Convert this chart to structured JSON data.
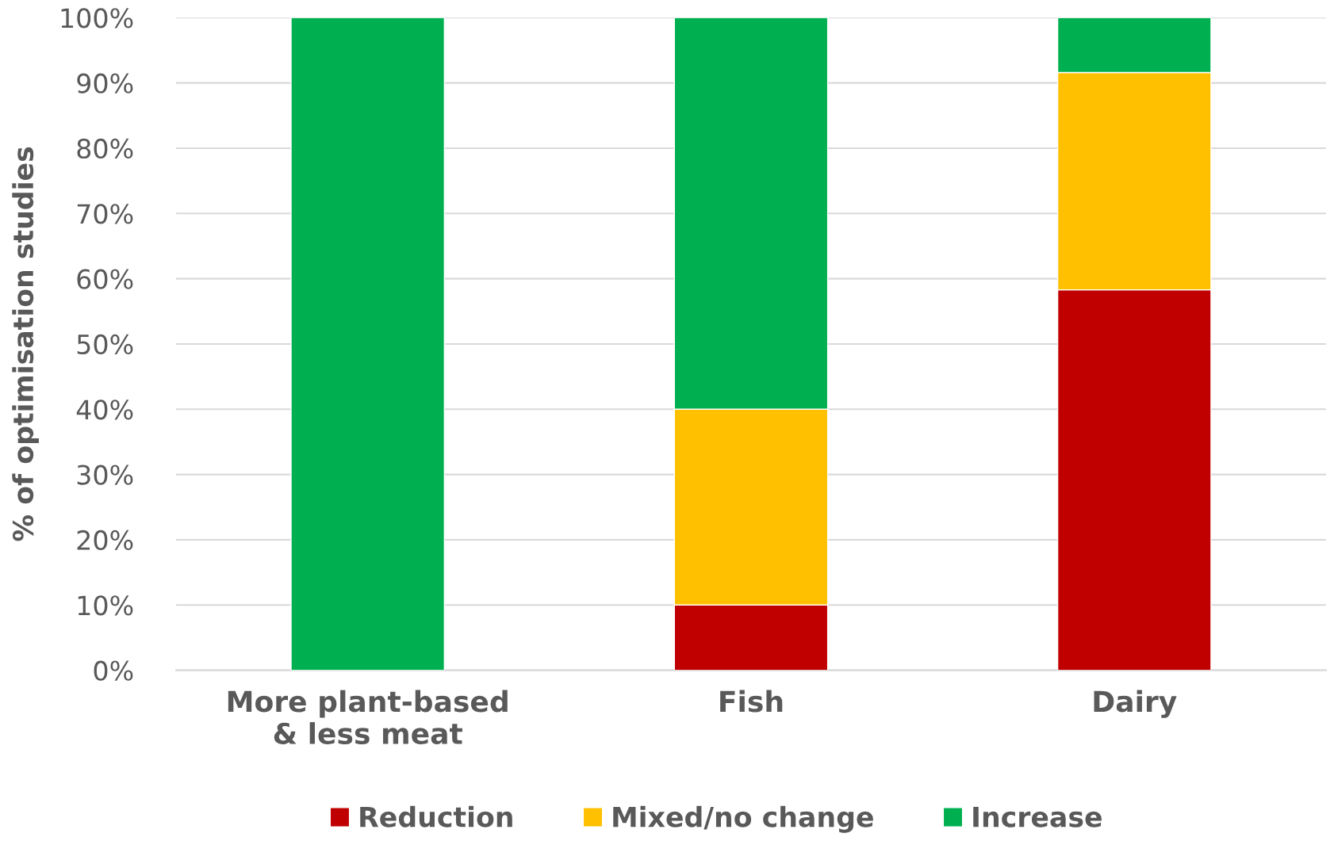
{
  "chart_data": {
    "type": "bar",
    "stacked": true,
    "ylabel": "% of optimisation studies",
    "categories": [
      "More plant-based\n& less meat",
      "Fish",
      "Dairy"
    ],
    "series": [
      {
        "name": "Reduction",
        "color": "#c00000",
        "values": [
          0,
          10,
          58.3
        ]
      },
      {
        "name": "Mixed/no change",
        "color": "#ffc000",
        "values": [
          0,
          30,
          33.3
        ]
      },
      {
        "name": "Increase",
        "color": "#00b050",
        "values": [
          100,
          60,
          8.4
        ]
      }
    ],
    "ylim": [
      0,
      100
    ],
    "yticks": [
      {
        "value": 0,
        "label": "0%"
      },
      {
        "value": 10,
        "label": "10%"
      },
      {
        "value": 20,
        "label": "20%"
      },
      {
        "value": 30,
        "label": "30%"
      },
      {
        "value": 40,
        "label": "40%"
      },
      {
        "value": 50,
        "label": "50%"
      },
      {
        "value": 60,
        "label": "60%"
      },
      {
        "value": 70,
        "label": "70%"
      },
      {
        "value": 80,
        "label": "80%"
      },
      {
        "value": 90,
        "label": "90%"
      },
      {
        "value": 100,
        "label": "100%"
      }
    ],
    "grid": "y",
    "legend": "bottom"
  }
}
